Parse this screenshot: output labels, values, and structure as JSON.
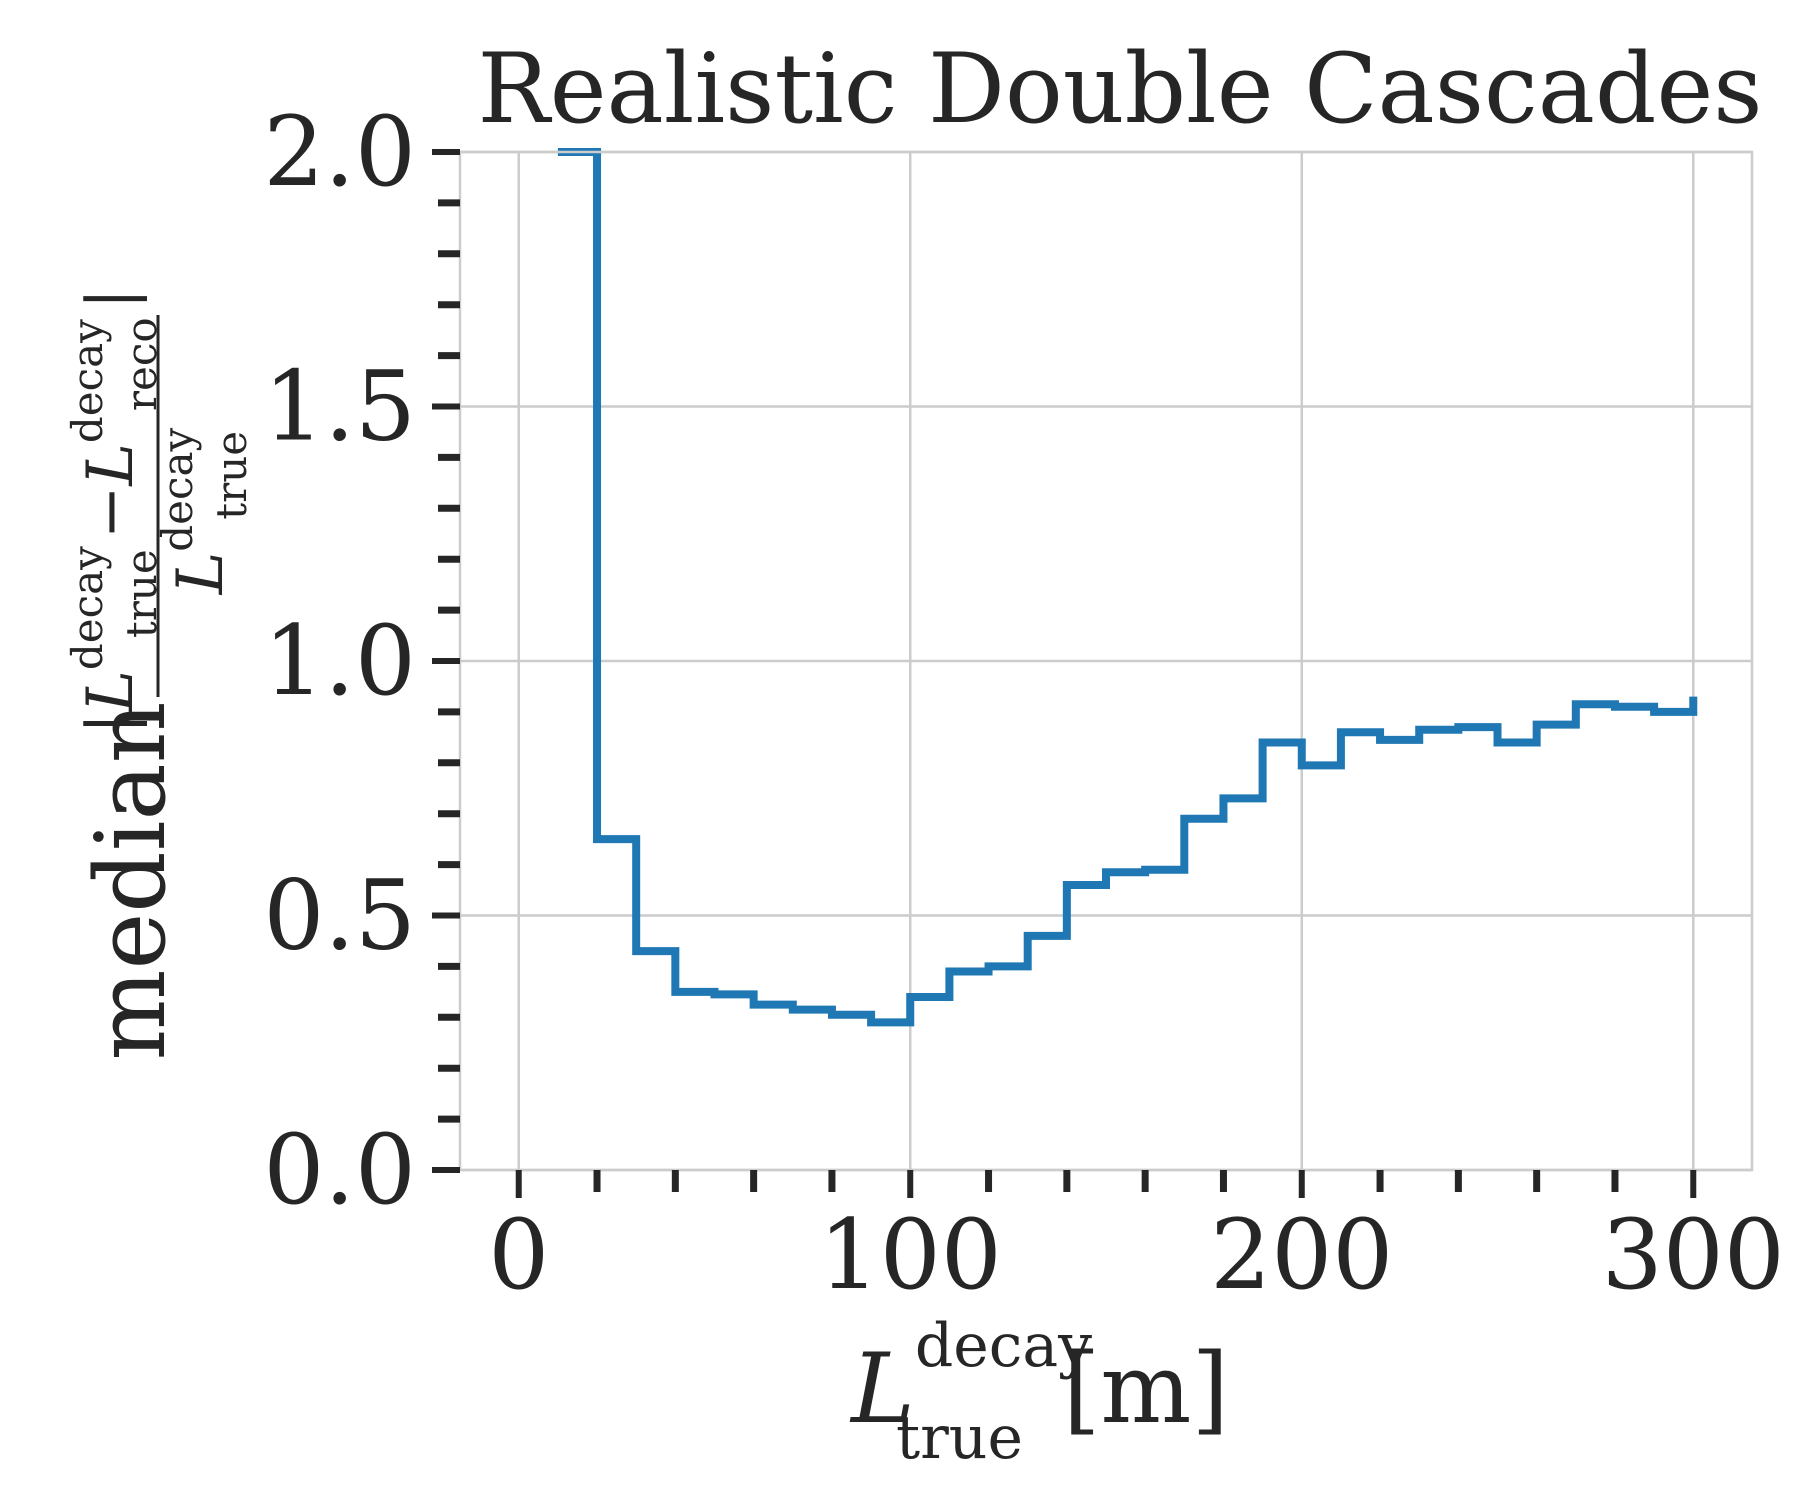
{
  "chart_data": {
    "type": "line",
    "step": "post",
    "title": "Realistic Double Cascades",
    "xlabel": {
      "main": "L",
      "sup": "decay",
      "sub": "true",
      "unit": "[m]"
    },
    "ylabel": {
      "prefix": "median",
      "num_L1_sup": "decay",
      "num_L1_sub": "true",
      "minus": "−",
      "num_L2_sup": "decay",
      "num_L2_sub": "reco",
      "den_sup": "decay",
      "den_sub": "true",
      "bar": "|"
    },
    "xlim": [
      -15,
      315
    ],
    "ylim": [
      0,
      2.0
    ],
    "xticks": [
      0,
      100,
      200,
      300
    ],
    "xtick_labels": [
      "0",
      "100",
      "200",
      "300"
    ],
    "xminor_step": 20,
    "yticks": [
      0.0,
      0.5,
      1.0,
      1.5,
      2.0
    ],
    "ytick_labels": [
      "0.0",
      "0.5",
      "1.0",
      "1.5",
      "2.0"
    ],
    "yminor_step": 0.1,
    "grid": true,
    "series": [
      {
        "color": "#1f77b4",
        "x": [
          10,
          20,
          30,
          40,
          50,
          60,
          70,
          80,
          90,
          100,
          110,
          120,
          130,
          140,
          150,
          160,
          170,
          180,
          190,
          200,
          210,
          220,
          230,
          240,
          250,
          260,
          270,
          280,
          290,
          300
        ],
        "y": [
          2.0,
          0.65,
          0.43,
          0.35,
          0.345,
          0.325,
          0.315,
          0.305,
          0.29,
          0.34,
          0.39,
          0.4,
          0.46,
          0.56,
          0.585,
          0.59,
          0.69,
          0.73,
          0.84,
          0.795,
          0.86,
          0.845,
          0.865,
          0.87,
          0.84,
          0.875,
          0.915,
          0.91,
          0.9,
          0.93
        ]
      }
    ]
  }
}
